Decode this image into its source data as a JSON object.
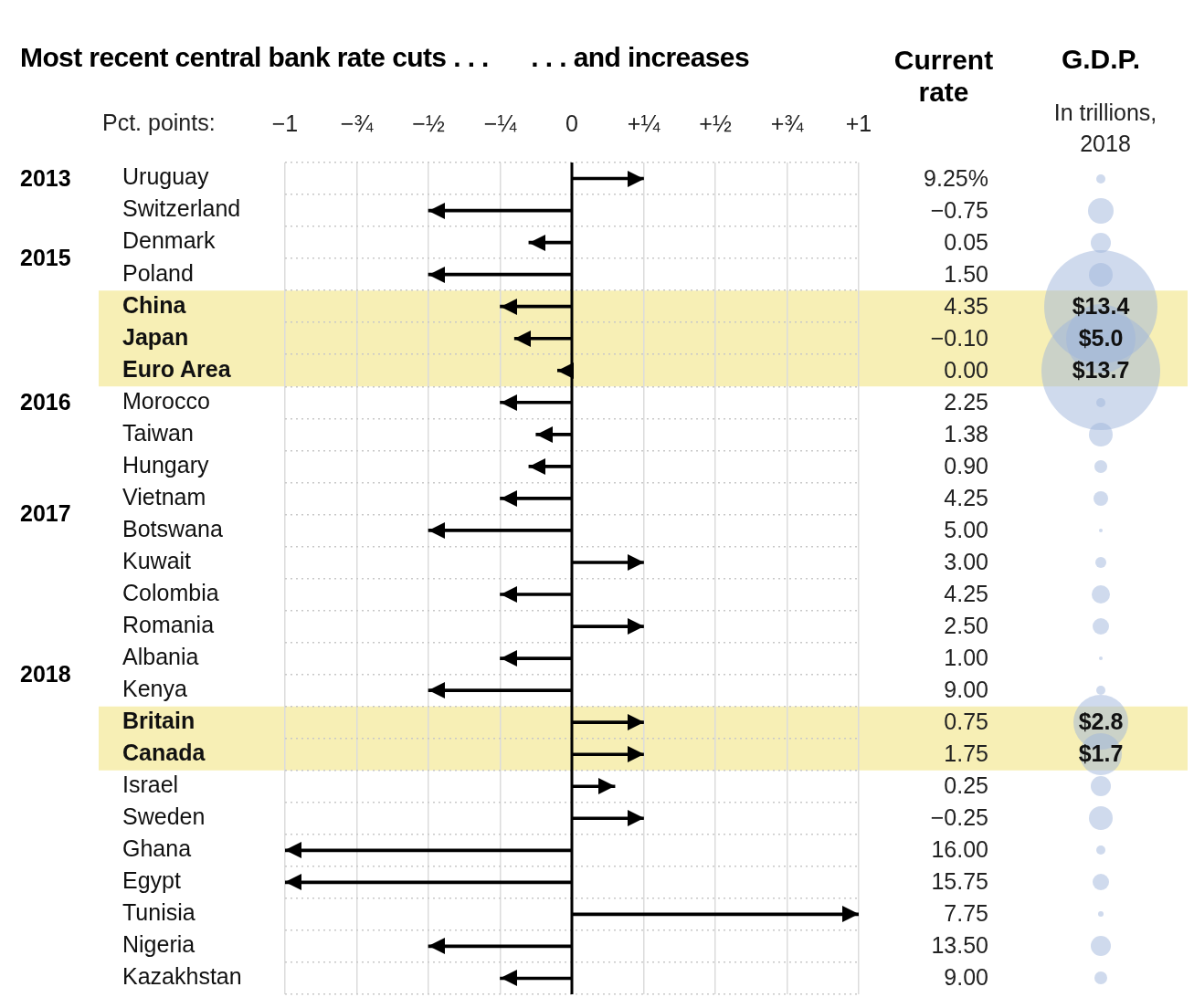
{
  "chart_data": [
    {
      "type": "bar",
      "orientation": "horizontal",
      "title": "Most recent central bank rate cuts . . .      . . . and increases",
      "xlabel": "Pct. points:",
      "categories": [
        "Uruguay",
        "Switzerland",
        "Denmark",
        "Poland",
        "China",
        "Japan",
        "Euro Area",
        "Morocco",
        "Taiwan",
        "Hungary",
        "Vietnam",
        "Botswana",
        "Kuwait",
        "Colombia",
        "Romania",
        "Albania",
        "Kenya",
        "Britain",
        "Canada",
        "Israel",
        "Sweden",
        "Ghana",
        "Egypt",
        "Tunisia",
        "Nigeria",
        "Kazakhstan"
      ],
      "values": [
        0.25,
        -0.5,
        -0.15,
        -0.5,
        -0.25,
        -0.2,
        -0.05,
        -0.25,
        -0.125,
        -0.15,
        -0.25,
        -0.5,
        0.25,
        -0.25,
        0.25,
        -0.25,
        -0.5,
        0.25,
        0.25,
        0.15,
        0.25,
        -1,
        -1,
        1,
        -0.5,
        -0.25
      ],
      "color": "#000000",
      "xlim": [
        -1,
        1
      ],
      "xticks": [
        {
          "value": -1,
          "label": "−1"
        },
        {
          "value": -0.75,
          "label": "−¾"
        },
        {
          "value": -0.5,
          "label": "−½"
        },
        {
          "value": -0.25,
          "label": "−¼"
        },
        0,
        {
          "value": 0.25,
          "label": "+¼"
        },
        {
          "value": 0.5,
          "label": "+½"
        },
        {
          "value": 0.75,
          "label": "+¾"
        },
        {
          "value": 1,
          "label": "+1"
        }
      ],
      "grid": true,
      "ref_lines": [
        {
          "axis": "x",
          "value": 0,
          "color": "#000000"
        }
      ],
      "bands": [
        {
          "axis": "y",
          "from": "China",
          "to": "Euro Area",
          "color": "#f7efb5"
        },
        {
          "axis": "y",
          "from": "Britain",
          "to": "Canada",
          "color": "#f7efb5"
        }
      ],
      "annotations": [
        "2013",
        "2015",
        "2016",
        "2017",
        "2018"
      ]
    },
    {
      "type": "other",
      "title": "Current rate",
      "annotations": [
        "9.25%",
        "−0.75",
        "0.05",
        "1.50",
        "4.35",
        "−0.10",
        "0.00",
        "2.25",
        "1.38",
        "0.90",
        "4.25",
        "5.00",
        "3.00",
        "4.25",
        "2.50",
        "1.00",
        "9.00",
        "0.75",
        "1.75",
        "0.25",
        "−0.25",
        "16.00",
        "15.75",
        "7.75",
        "13.50",
        "9.00"
      ]
    },
    {
      "type": "other",
      "title": "G.D.P.",
      "subtitle": "In trillions, 2018",
      "annotations": [
        "$13.4",
        "$5.0",
        "$13.7",
        "$2.8",
        "$1.7"
      ]
    }
  ]
}
